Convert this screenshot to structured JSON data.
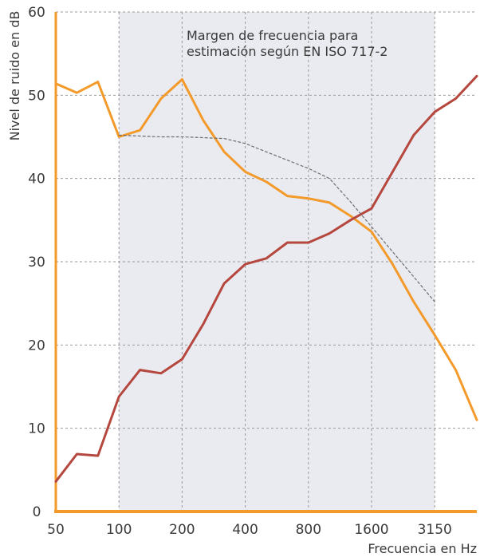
{
  "chart_data": {
    "type": "line",
    "title": "",
    "xlabel": "Frecuencia en Hz",
    "ylabel": "Nivel de ruido en dB",
    "ylim": [
      0,
      60
    ],
    "grid": true,
    "x": [
      50,
      63,
      80,
      100,
      125,
      160,
      200,
      250,
      315,
      400,
      500,
      630,
      800,
      1000,
      1250,
      1600,
      2000,
      2500,
      3150,
      4000,
      5000
    ],
    "x_tick_labels": [
      "50",
      "100",
      "200",
      "400",
      "800",
      "1600",
      "3150"
    ],
    "x_tick_values": [
      50,
      100,
      200,
      400,
      800,
      1600,
      3150
    ],
    "y_ticks": [
      0,
      10,
      20,
      30,
      40,
      50,
      60
    ],
    "shaded_range": {
      "from": 100,
      "to": 3150,
      "label_lines": [
        "Margen de frecuencia para",
        "estimación según EN ISO 717-2"
      ]
    },
    "series": [
      {
        "color": "#F39A2A",
        "values": [
          51.4,
          50.3,
          51.6,
          45.0,
          45.8,
          49.6,
          51.9,
          47.0,
          43.2,
          40.8,
          39.6,
          37.9,
          37.6,
          37.1,
          35.5,
          33.6,
          29.7,
          25.2,
          21.2,
          17.0,
          11.0
        ]
      },
      {
        "color": "#B5473E",
        "values": [
          3.6,
          6.9,
          6.7,
          13.8,
          17.0,
          16.6,
          18.3,
          22.5,
          27.4,
          29.7,
          30.4,
          32.3,
          32.3,
          33.4,
          35.0,
          36.4,
          40.8,
          45.2,
          48.0,
          49.6,
          52.3
        ]
      },
      {
        "style": "dashed",
        "color": "#6E6E6E",
        "x": [
          100,
          125,
          160,
          200,
          250,
          315,
          400,
          500,
          630,
          800,
          1000,
          1250,
          1600,
          2000,
          2500,
          3150
        ],
        "values": [
          45.2,
          45.1,
          45.0,
          45.0,
          44.9,
          44.8,
          44.2,
          43.2,
          42.2,
          41.2,
          40.0,
          37.2,
          34.2,
          31.2,
          28.2,
          25.2
        ]
      }
    ],
    "colors": {
      "axis": "#F39A2A",
      "shade": "#E9EBF0",
      "grid": "#9A9A9A"
    }
  }
}
